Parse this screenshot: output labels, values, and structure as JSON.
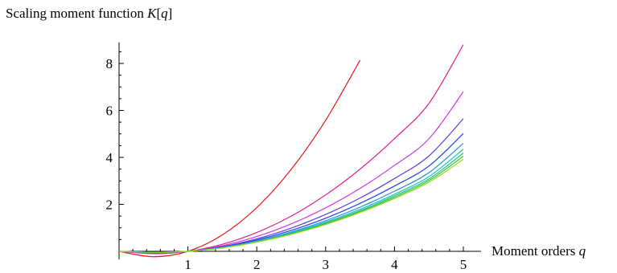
{
  "chart_data": {
    "type": "line",
    "title": "",
    "ylabel": "Scaling moment function",
    "ylabel_var": "K",
    "ylabel_arg": "q",
    "xlabel": "Moment orders",
    "xlabel_var": "q",
    "xlim": [
      0,
      5
    ],
    "ylim": [
      -0.3,
      8.9
    ],
    "xticks": [
      "1",
      "2",
      "3",
      "4",
      "5"
    ],
    "yticks": [
      "2",
      "4",
      "6",
      "8"
    ],
    "grid": false,
    "legend": "none",
    "x": [
      0,
      0.5,
      1,
      1.5,
      2,
      2.5,
      3,
      3.5,
      4,
      4.5,
      5
    ],
    "series": [
      {
        "color": "#e31a1c",
        "values": [
          0,
          -0.23,
          0,
          0.7,
          1.86,
          3.49,
          5.58,
          8.14,
          null,
          null,
          null
        ]
      },
      {
        "color": "#e0208f",
        "values": [
          0,
          -0.1,
          0,
          0.3,
          0.8,
          1.5,
          2.4,
          3.5,
          4.8,
          6.3,
          8.8
        ]
      },
      {
        "color": "#cc33ee",
        "values": [
          0,
          -0.08,
          0,
          0.24,
          0.63,
          1.17,
          1.85,
          2.68,
          3.66,
          4.79,
          6.8
        ]
      },
      {
        "color": "#5a3de0",
        "values": [
          0,
          -0.06,
          0,
          0.2,
          0.53,
          0.99,
          1.57,
          2.27,
          3.1,
          4.06,
          5.65
        ]
      },
      {
        "color": "#1f3fe8",
        "values": [
          0,
          -0.05,
          0,
          0.18,
          0.48,
          0.89,
          1.41,
          2.04,
          2.78,
          3.63,
          5.02
        ]
      },
      {
        "color": "#1f8fe8",
        "values": [
          0,
          -0.05,
          0,
          0.17,
          0.44,
          0.82,
          1.3,
          1.88,
          2.56,
          3.35,
          4.6
        ]
      },
      {
        "color": "#19c4c4",
        "values": [
          0,
          -0.04,
          0,
          0.16,
          0.42,
          0.78,
          1.24,
          1.79,
          2.43,
          3.18,
          4.35
        ]
      },
      {
        "color": "#22c07a",
        "values": [
          0,
          -0.04,
          0,
          0.15,
          0.41,
          0.76,
          1.2,
          1.73,
          2.36,
          3.08,
          4.18
        ]
      },
      {
        "color": "#2ecc40",
        "values": [
          0,
          -0.04,
          0,
          0.15,
          0.4,
          0.74,
          1.17,
          1.69,
          2.3,
          3.01,
          4.05
        ]
      },
      {
        "color": "#a8d11a",
        "values": [
          0,
          -0.04,
          0,
          0.14,
          0.39,
          0.72,
          1.14,
          1.65,
          2.25,
          2.94,
          3.92
        ]
      }
    ]
  }
}
